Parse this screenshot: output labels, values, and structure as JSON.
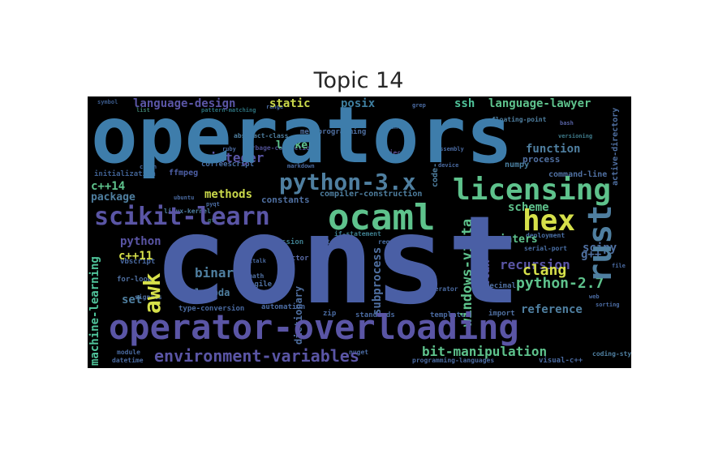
{
  "title": "Topic 14",
  "colors": {
    "background": "#ffffff",
    "cloud_background": "#000000",
    "title_text": "#262626"
  },
  "words": {
    "const": "const",
    "operators": "operators",
    "operator_overloading": "operator-overloading",
    "ocaml": "ocaml",
    "licensing": "licensing",
    "scikit_learn": "scikit-learn",
    "python_3x": "python-3.x",
    "rust": "rust",
    "hex": "hex",
    "awk": "awk",
    "environment_variables": "environment-variables",
    "bit_manipulation": "bit-manipulation",
    "language_design": "language-design",
    "language_lawyer": "language-lawyer",
    "machine_learning": "machine-learning",
    "python_27": "python-2.7",
    "windows_vista": "windows-vista",
    "subprocess": "subprocess",
    "static": "static",
    "posix": "posix",
    "ssh": "ssh",
    "function": "function",
    "integer": "integer",
    "scheme": "scheme",
    "clang": "clang",
    "recursion": "recursion",
    "reference": "reference",
    "binary": "binary",
    "syntax": "syntax",
    "cpp14": "c++14",
    "cpp11": "c++11",
    "methods": "methods",
    "package": "package",
    "python": "python",
    "set": "set",
    "scipy": "scipy",
    "pointers": "pointers",
    "lambda": "lambda",
    "dictionary": "dictionary",
    "code_coverage": "code-coverage",
    "linker": "linker",
    "constants": "constants",
    "compiler_construction": "compiler-construction",
    "gpp": "g++",
    "process": "process",
    "numpy": "numpy",
    "metaprogramming": "metaprogramming",
    "coffeescript": "coffeescript",
    "ffmpeg": "ffmpeg",
    "initialization": "initialization",
    "deployment": "deployment",
    "serial_port": "serial-port",
    "type_conversion": "type-conversion",
    "automation": "automation",
    "zip": "zip",
    "standards": "standards",
    "templates": "templates",
    "import": "import",
    "decimal": "decimal",
    "iterator": "iterator",
    "agile": "agile",
    "math": "math",
    "vector": "vector",
    "expression": "expression",
    "boost": "boost",
    "if_statement": "if-statement",
    "request": "request",
    "for_loop": "for-loop",
    "linux_kernel": "linux-kernel",
    "ubuntu": "ubuntu",
    "pyqt": "pyqt",
    "command_line": "command-line",
    "active_directory": "active-directory",
    "floating_point": "floating-point",
    "signals": "signals",
    "vbscript": "vbscript",
    "module": "module",
    "datetime": "datetime",
    "nuget": "nuget",
    "programming_languages": "programming-languages",
    "visual_cpp": "visual-c++",
    "coding_style": "coding-style",
    "random": "random",
    "object": "object",
    "garbage_collection": "garbage-collection",
    "abstract_class": "abstract-class",
    "ruby": "ruby",
    "markdown": "markdown",
    "list": "list",
    "versioning": "versioning",
    "pattern_matching": "pattern-matching",
    "symbol": "symbol",
    "qt": "qt",
    "smalltalk": "smalltalk",
    "crash": "crash",
    "syntax_error": "syntax-error",
    "grep": "grep",
    "assembly": "assembly",
    "device": "device",
    "bash": "bash",
    "file": "file",
    "sorting": "sorting",
    "web": "web",
    "range": "range"
  }
}
